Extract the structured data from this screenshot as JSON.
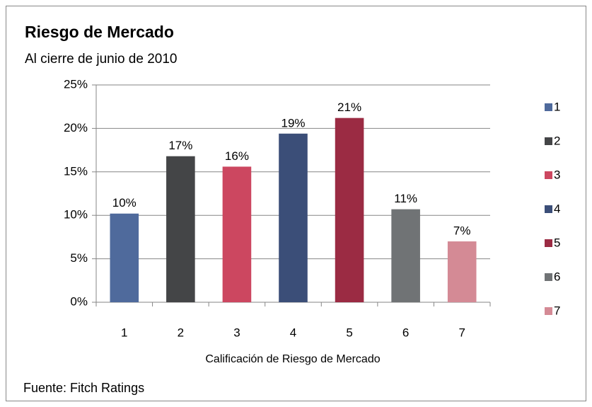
{
  "chart_data": {
    "type": "bar",
    "title": "Riesgo de Mercado",
    "subtitle": "Al cierre de junio de 2010",
    "x_label": "Calificación de Riesgo de Mercado",
    "source": "Fuente: Fitch Ratings",
    "categories": [
      "1",
      "2",
      "3",
      "4",
      "5",
      "6",
      "7"
    ],
    "values": [
      10.2,
      16.8,
      15.6,
      19.4,
      21.2,
      10.7,
      7.0
    ],
    "value_labels": [
      "10%",
      "17%",
      "16%",
      "19%",
      "21%",
      "11%",
      "7%"
    ],
    "colors": [
      "#4f6a9c",
      "#444547",
      "#cc4760",
      "#3b4e78",
      "#9b2b43",
      "#707375",
      "#d48a95"
    ],
    "ylim": [
      0,
      25
    ],
    "yticks": [
      {
        "value": 0,
        "label": "0%"
      },
      {
        "value": 5,
        "label": "5%"
      },
      {
        "value": 10,
        "label": "10%"
      },
      {
        "value": 15,
        "label": "15%"
      },
      {
        "value": 20,
        "label": "20%"
      },
      {
        "value": 25,
        "label": "25%"
      }
    ],
    "grid": true,
    "legend": "right"
  }
}
